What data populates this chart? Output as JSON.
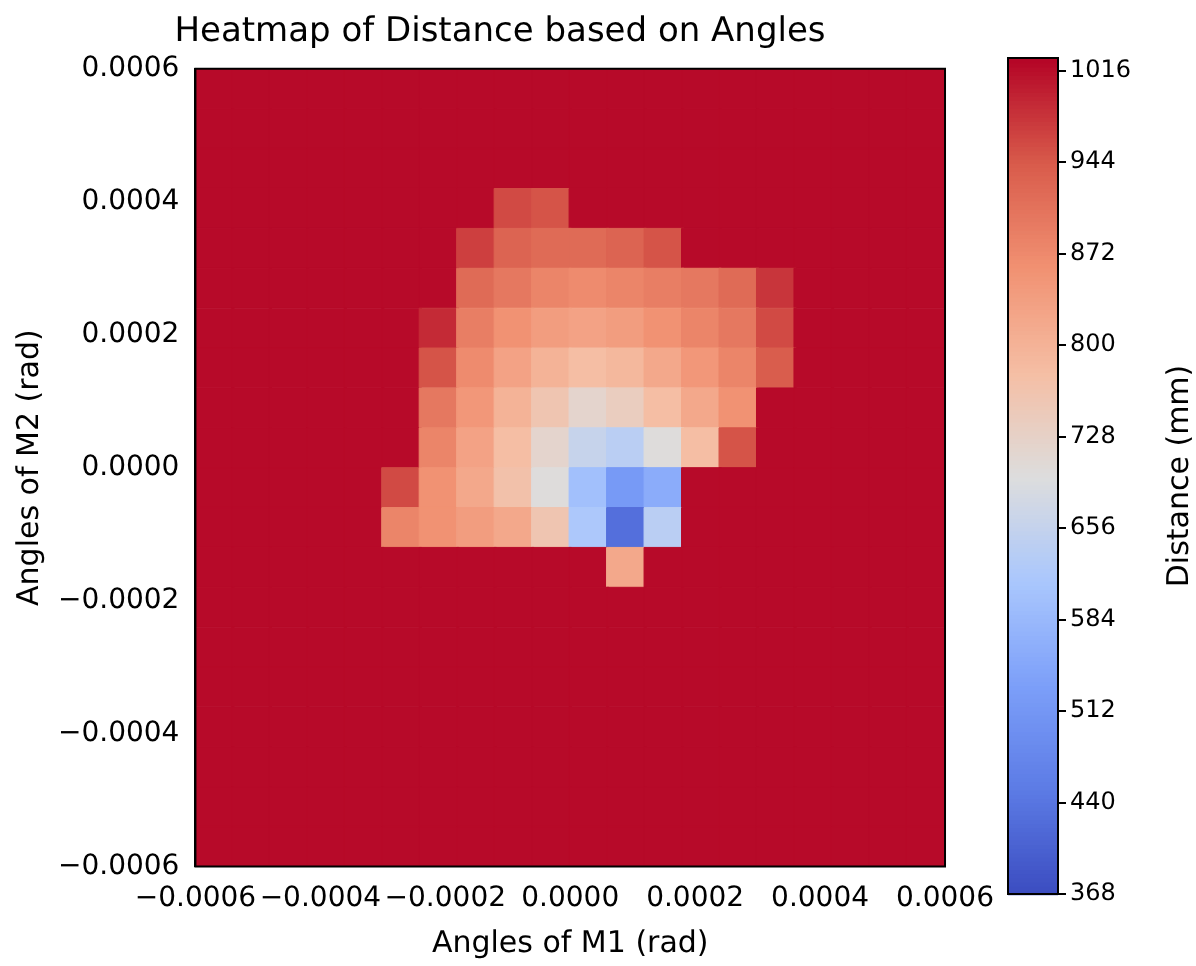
{
  "chart_data": {
    "type": "heatmap",
    "title": "Heatmap of Distance based on Angles",
    "xlabel": "Angles of M1 (rad)",
    "ylabel": "Angles of M2 (rad)",
    "clabel": "Distance (mm)",
    "xlim": [
      -0.0006,
      0.0006
    ],
    "ylim": [
      -0.0006,
      0.0006
    ],
    "xticks": [
      {
        "value": -0.0006,
        "label": "−0.0006"
      },
      {
        "value": -0.0004,
        "label": "−0.0004"
      },
      {
        "value": -0.0002,
        "label": "−0.0002"
      },
      {
        "value": 0,
        "label": "0.0000"
      },
      {
        "value": 0.0002,
        "label": "0.0002"
      },
      {
        "value": 0.0004,
        "label": "0.0004"
      },
      {
        "value": 0.0006,
        "label": "0.0006"
      }
    ],
    "yticks": [
      {
        "value": -0.0006,
        "label": "−0.0006"
      },
      {
        "value": -0.0004,
        "label": "−0.0004"
      },
      {
        "value": -0.0002,
        "label": "−0.0002"
      },
      {
        "value": 0,
        "label": "0.0000"
      },
      {
        "value": 0.0002,
        "label": "0.0002"
      },
      {
        "value": 0.0004,
        "label": "0.0004"
      },
      {
        "value": 0.0006,
        "label": "0.0006"
      }
    ],
    "clim": [
      368,
      1026
    ],
    "cticks": [
      368,
      440,
      512,
      584,
      656,
      728,
      800,
      872,
      944,
      1016
    ],
    "cells": [
      [
        1020,
        1020,
        1020,
        1020,
        1020,
        1020,
        1020,
        1020,
        1020,
        1020,
        1020,
        1020,
        1020,
        1020,
        1020,
        1020,
        1020,
        1020,
        1020,
        1020
      ],
      [
        1020,
        1020,
        1020,
        1020,
        1020,
        1020,
        1020,
        1020,
        1020,
        1020,
        1020,
        1020,
        1020,
        1020,
        1020,
        1020,
        1020,
        1020,
        1020,
        1020
      ],
      [
        1020,
        1020,
        1020,
        1020,
        1020,
        1020,
        1020,
        1020,
        1020,
        1020,
        1020,
        1020,
        1020,
        1020,
        1020,
        1020,
        1020,
        1020,
        1020,
        1020
      ],
      [
        1020,
        1020,
        1020,
        1020,
        1020,
        1020,
        1020,
        1020,
        960,
        950,
        1020,
        1020,
        1020,
        1020,
        1020,
        1020,
        1020,
        1020,
        1020,
        1020
      ],
      [
        1020,
        1020,
        1020,
        1020,
        1020,
        1020,
        1020,
        970,
        930,
        920,
        920,
        930,
        950,
        1020,
        1020,
        1020,
        1020,
        1020,
        1020,
        1020
      ],
      [
        1020,
        1020,
        1020,
        1020,
        1020,
        1020,
        1020,
        920,
        900,
        880,
        870,
        880,
        890,
        900,
        920,
        980,
        1020,
        1020,
        1020,
        1020
      ],
      [
        1020,
        1020,
        1020,
        1020,
        1020,
        1020,
        990,
        890,
        860,
        840,
        830,
        840,
        860,
        880,
        900,
        960,
        1020,
        1020,
        1020,
        1020
      ],
      [
        1020,
        1020,
        1020,
        1020,
        1020,
        1020,
        950,
        870,
        830,
        800,
        780,
        790,
        820,
        850,
        880,
        940,
        1020,
        1020,
        1020,
        1020
      ],
      [
        1020,
        1020,
        1020,
        1020,
        1020,
        1020,
        900,
        850,
        800,
        760,
        720,
        740,
        780,
        820,
        860,
        1020,
        1020,
        1020,
        1020,
        1020
      ],
      [
        1020,
        1020,
        1020,
        1020,
        1020,
        1020,
        880,
        830,
        780,
        720,
        660,
        640,
        700,
        780,
        950,
        1020,
        1020,
        1020,
        1020,
        1020
      ],
      [
        1020,
        1020,
        1020,
        1020,
        1020,
        960,
        860,
        820,
        770,
        700,
        600,
        520,
        560,
        1020,
        1020,
        1020,
        1020,
        1020,
        1020,
        1020
      ],
      [
        1020,
        1020,
        1020,
        1020,
        1020,
        880,
        860,
        840,
        820,
        760,
        620,
        430,
        640,
        1020,
        1020,
        1020,
        1020,
        1020,
        1020,
        1020
      ],
      [
        1020,
        1020,
        1020,
        1020,
        1020,
        1020,
        1020,
        1020,
        1020,
        1020,
        1020,
        820,
        1020,
        1020,
        1020,
        1020,
        1020,
        1020,
        1020,
        1020
      ],
      [
        1020,
        1020,
        1020,
        1020,
        1020,
        1020,
        1020,
        1020,
        1020,
        1020,
        1020,
        1020,
        1020,
        1020,
        1020,
        1020,
        1020,
        1020,
        1020,
        1020
      ],
      [
        1020,
        1020,
        1020,
        1020,
        1020,
        1020,
        1020,
        1020,
        1020,
        1020,
        1020,
        1020,
        1020,
        1020,
        1020,
        1020,
        1020,
        1020,
        1020,
        1020
      ],
      [
        1020,
        1020,
        1020,
        1020,
        1020,
        1020,
        1020,
        1020,
        1020,
        1020,
        1020,
        1020,
        1020,
        1020,
        1020,
        1020,
        1020,
        1020,
        1020,
        1020
      ],
      [
        1020,
        1020,
        1020,
        1020,
        1020,
        1020,
        1020,
        1020,
        1020,
        1020,
        1020,
        1020,
        1020,
        1020,
        1020,
        1020,
        1020,
        1020,
        1020,
        1020
      ],
      [
        1020,
        1020,
        1020,
        1020,
        1020,
        1020,
        1020,
        1020,
        1020,
        1020,
        1020,
        1020,
        1020,
        1020,
        1020,
        1020,
        1020,
        1020,
        1020,
        1020
      ],
      [
        1020,
        1020,
        1020,
        1020,
        1020,
        1020,
        1020,
        1020,
        1020,
        1020,
        1020,
        1020,
        1020,
        1020,
        1020,
        1020,
        1020,
        1020,
        1020,
        1020
      ],
      [
        1020,
        1020,
        1020,
        1020,
        1020,
        1020,
        1020,
        1020,
        1020,
        1020,
        1020,
        1020,
        1020,
        1020,
        1020,
        1020,
        1020,
        1020,
        1020,
        1020
      ]
    ]
  }
}
